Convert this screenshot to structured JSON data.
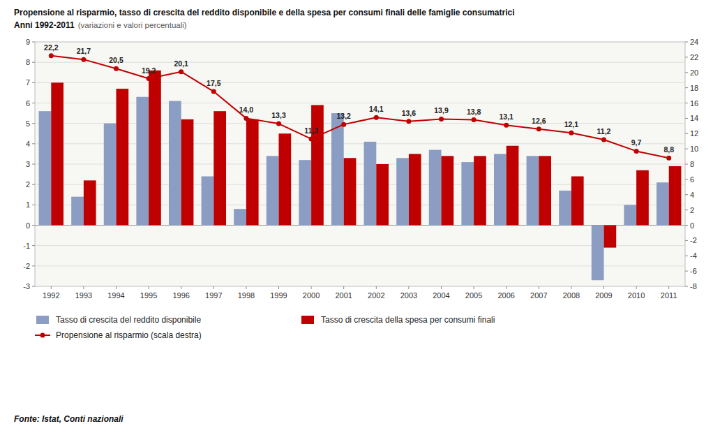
{
  "chart_data": {
    "type": "bar",
    "title": "Propensione al risparmio, tasso di crescita del reddito disponibile e della spesa per consumi finali delle famiglie consumatrici",
    "subtitle": "Anni 1992-2011",
    "annotations": [
      "(variazioni e valori percentuali)",
      "Fonte: Istat, Conti nazionali"
    ],
    "categories": [
      "1992",
      "1993",
      "1994",
      "1995",
      "1996",
      "1997",
      "1998",
      "1999",
      "2000",
      "2001",
      "2002",
      "2003",
      "2004",
      "2005",
      "2006",
      "2007",
      "2008",
      "2009",
      "2010",
      "2011"
    ],
    "series": [
      {
        "name": "Tasso di crescita del reddito disponibile",
        "type": "bar",
        "color": "#8B9DC3",
        "values": [
          5.6,
          1.4,
          5.0,
          6.3,
          6.1,
          2.4,
          0.8,
          3.4,
          3.2,
          5.5,
          4.1,
          3.3,
          3.7,
          3.1,
          3.5,
          3.4,
          1.7,
          -2.7,
          1.0,
          2.1
        ]
      },
      {
        "name": "Tasso di crescita della spesa per consumi finali",
        "type": "bar",
        "color": "#C00000",
        "values": [
          7.0,
          2.2,
          6.7,
          7.6,
          5.2,
          5.6,
          5.2,
          4.5,
          5.9,
          3.3,
          3.0,
          3.5,
          3.4,
          3.4,
          3.9,
          3.4,
          2.4,
          -1.1,
          2.7,
          2.9
        ]
      },
      {
        "name": "Propensione al risparmio (scala destra)",
        "type": "line",
        "axis": "y2",
        "color": "#C00000",
        "marker": "circle",
        "data_labels": true,
        "values": [
          22.2,
          21.7,
          20.5,
          19.2,
          20.1,
          17.5,
          14.0,
          13.3,
          11.3,
          13.2,
          14.1,
          13.6,
          13.9,
          13.8,
          13.1,
          12.6,
          12.1,
          11.2,
          9.7,
          8.8
        ],
        "value_labels": [
          "22,2",
          "21,7",
          "20,5",
          "19,2",
          "20,1",
          "17,5",
          "14,0",
          "13,3",
          "11,3",
          "13,2",
          "14,1",
          "13,6",
          "13,9",
          "13,8",
          "13,1",
          "12,6",
          "12,1",
          "11,2",
          "9,7",
          "8,8"
        ]
      }
    ],
    "ylim": [
      -3,
      9
    ],
    "yticks": [
      -3,
      -2,
      -1,
      0,
      1,
      2,
      3,
      4,
      5,
      6,
      7,
      8,
      9
    ],
    "y2lim": [
      -8,
      24
    ],
    "y2ticks": [
      -8,
      -6,
      -4,
      -2,
      0,
      2,
      4,
      6,
      8,
      10,
      12,
      14,
      16,
      18,
      20,
      22,
      24
    ],
    "grid": true,
    "legend": "bottom"
  }
}
